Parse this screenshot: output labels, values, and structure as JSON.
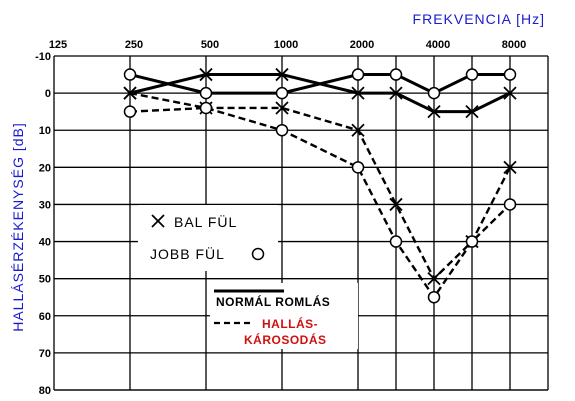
{
  "chart_data": {
    "type": "line",
    "xlabel": "FREKVENCIA [Hz]",
    "ylabel": "HALLÁSÉRZÉKENYSÉG [dB]",
    "x_ticks": [
      "125",
      "250",
      "500",
      "1000",
      "2000",
      "4000",
      "8000"
    ],
    "x_tick_positions": [
      0,
      1,
      2,
      3,
      4,
      5,
      6
    ],
    "y_ticks": [
      -10,
      0,
      10,
      20,
      30,
      40,
      50,
      60,
      70,
      80
    ],
    "ylim": [
      -10,
      80
    ],
    "y_inverted": true,
    "grid": true,
    "series": [
      {
        "name": "BAL FÜL",
        "style": "solid",
        "marker": "x",
        "x": [
          1,
          2,
          3,
          4,
          4.5,
          5,
          5.5,
          6
        ],
        "y": [
          0,
          -5,
          -5,
          0,
          0,
          5,
          5,
          0
        ]
      },
      {
        "name": "JOBB FÜL",
        "style": "solid",
        "marker": "o",
        "x": [
          1,
          2,
          3,
          4,
          4.5,
          5,
          5.5,
          6
        ],
        "y": [
          -5,
          0,
          0,
          -5,
          -5,
          0,
          -5,
          -5
        ]
      },
      {
        "name": "BAL FÜL",
        "style": "dashed",
        "marker": "x",
        "x": [
          1,
          2,
          3,
          4,
          4.5,
          5,
          5.5,
          6
        ],
        "y": [
          0,
          4,
          4,
          10,
          30,
          50,
          40,
          20
        ]
      },
      {
        "name": "JOBB FÜL",
        "style": "dashed",
        "marker": "o",
        "x": [
          1,
          2,
          3,
          4,
          4.5,
          5,
          5.5,
          6
        ],
        "y": [
          5,
          4,
          10,
          20,
          40,
          55,
          40,
          30
        ]
      }
    ],
    "legend": {
      "markers_box": [
        {
          "label": "BAL FÜL",
          "marker": "x"
        },
        {
          "label": "JOBB FÜL",
          "marker": "o"
        }
      ],
      "lines_box": [
        {
          "label": "NORMÁL ROMLÁS",
          "style": "solid"
        },
        {
          "label_line1": "HALLÁS-",
          "label_line2": "KÁROSODÁS",
          "style": "dashed"
        }
      ]
    }
  },
  "colors": {
    "axis_title": "#1a1ad0",
    "legend_red": "#d01010",
    "line": "#000000"
  }
}
